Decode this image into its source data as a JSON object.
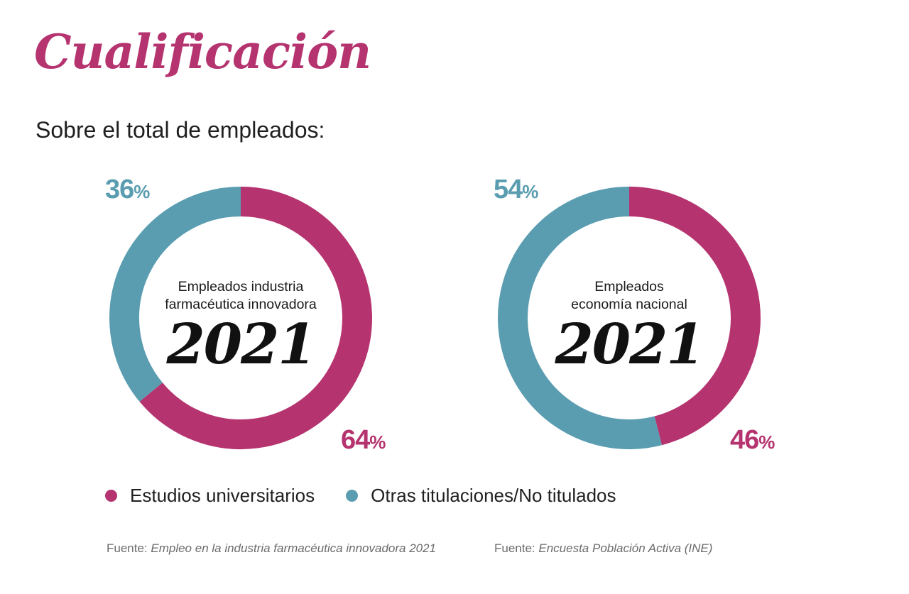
{
  "title": "Cualificación",
  "subtitle": "Sobre el total de empleados:",
  "colors": {
    "universitarios": "#b5336f",
    "otras": "#5a9db0",
    "title": "#b5336f"
  },
  "chart_data": [
    {
      "type": "pie",
      "donut": true,
      "center_label": [
        "Empleados industria",
        "farmacéutica innovadora"
      ],
      "center_year": "2021",
      "slices": [
        {
          "label": "Estudios universitarios",
          "value": 64,
          "display": "64",
          "unit": "%"
        },
        {
          "label": "Otras titulaciones/No titulados",
          "value": 36,
          "display": "36",
          "unit": "%"
        }
      ]
    },
    {
      "type": "pie",
      "donut": true,
      "center_label": [
        "Empleados",
        "economía nacional"
      ],
      "center_year": "2021",
      "slices": [
        {
          "label": "Estudios universitarios",
          "value": 46,
          "display": "46",
          "unit": "%"
        },
        {
          "label": "Otras titulaciones/No titulados",
          "value": 54,
          "display": "54",
          "unit": "%"
        }
      ]
    }
  ],
  "legend": [
    {
      "label": "Estudios universitarios",
      "color": "#b5336f"
    },
    {
      "label": "Otras titulaciones/No titulados",
      "color": "#5a9db0"
    }
  ],
  "sources": [
    {
      "prefix": "Fuente: ",
      "text": "Empleo en la industria farmacéutica innovadora 2021"
    },
    {
      "prefix": "Fuente: ",
      "text": "Encuesta Población Activa (INE)"
    }
  ]
}
